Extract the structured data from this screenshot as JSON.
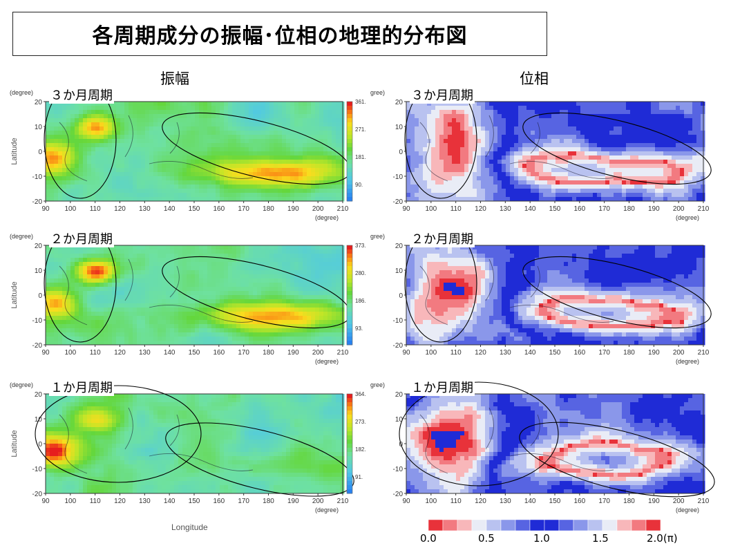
{
  "title": "各周期成分の振幅･位相の地理的分布図",
  "columns": {
    "amplitude": "振幅",
    "phase": "位相"
  },
  "axis": {
    "degree_unit": "(degree)",
    "phase_degree_unit_cropped": "gree)",
    "latitude_label": "Latitude",
    "longitude_label": "Longitude",
    "lat_ticks": [
      "20",
      "10",
      "0",
      "-10",
      "-20"
    ],
    "lon_ticks": [
      "90",
      "100",
      "110",
      "120",
      "130",
      "140",
      "150",
      "160",
      "170",
      "180",
      "190",
      "200",
      "210"
    ]
  },
  "panels": [
    {
      "period": "３か月周期",
      "amp_colorbar": [
        "361.",
        "271.",
        "181.",
        "90."
      ]
    },
    {
      "period": "２か月周期",
      "amp_colorbar": [
        "373.",
        "280.",
        "186.",
        "93."
      ]
    },
    {
      "period": "１か月周期",
      "amp_colorbar": [
        "364.",
        "273.",
        "182.",
        "91."
      ]
    }
  ],
  "phase_colorbar": {
    "labels": [
      "0.0",
      "0.5",
      "1.0",
      "1.5",
      "2.0(π)"
    ],
    "colors": [
      "#e8323a",
      "#f27a80",
      "#f8b7ba",
      "#e9ecf6",
      "#b9c2f0",
      "#8a97ea",
      "#5764e2",
      "#1f2bd6",
      "#1f2bd6",
      "#5764e2",
      "#8a97ea",
      "#b9c2f0",
      "#e9ecf6",
      "#f8b7ba",
      "#f27a80",
      "#e8323a"
    ]
  }
}
